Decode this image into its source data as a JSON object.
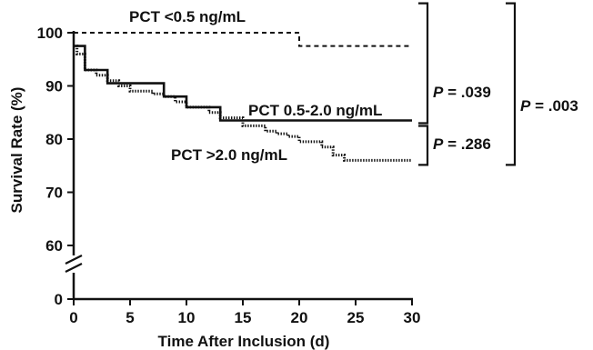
{
  "chart_data": {
    "type": "line",
    "xlabel": "Time After Inclusion (d)",
    "ylabel": "Survival Rate (%)",
    "xlim": [
      0,
      30
    ],
    "ylim_displayed": [
      60,
      100
    ],
    "y_axis_break": true,
    "x_ticks": [
      0,
      5,
      10,
      15,
      20,
      25,
      30
    ],
    "y_ticks": [
      60,
      70,
      80,
      90,
      100
    ],
    "y_zero_tick": 0,
    "grid": false,
    "series": [
      {
        "name": "PCT <0.5 ng/mL",
        "style": "dashed",
        "color": "#111111",
        "x": [
          0,
          20,
          20,
          30
        ],
        "y": [
          100,
          100,
          97.5,
          97.5
        ]
      },
      {
        "name": "PCT 0.5-2.0 ng/mL",
        "style": "solid",
        "color": "#111111",
        "x": [
          0,
          1,
          1,
          3,
          3,
          8,
          8,
          10,
          10,
          13,
          13,
          30
        ],
        "y": [
          97.5,
          97.5,
          93,
          93,
          90.5,
          90.5,
          88,
          88,
          86,
          86,
          83.5,
          83.5
        ]
      },
      {
        "name": "PCT >2.0 ng/mL",
        "style": "dotted",
        "color": "#111111",
        "x": [
          0,
          0.3,
          0.3,
          1,
          1,
          2,
          2,
          3,
          3,
          4,
          4,
          5,
          5,
          7,
          7,
          8,
          8,
          9,
          9,
          10,
          10,
          12,
          12,
          13,
          13,
          15,
          15,
          17,
          17,
          18,
          18,
          19,
          19,
          20,
          20,
          22,
          22,
          23,
          23,
          24,
          24,
          30
        ],
        "y": [
          97.5,
          97.5,
          96,
          96,
          93,
          93,
          92,
          92,
          91,
          91,
          90,
          90,
          89,
          89,
          88.5,
          88.5,
          88,
          88,
          87,
          87,
          86,
          86,
          85,
          85,
          84,
          84,
          82.5,
          82.5,
          81.5,
          81.5,
          81,
          81,
          80.5,
          80.5,
          79.5,
          79.5,
          78.5,
          78.5,
          77,
          77,
          76,
          76
        ]
      }
    ],
    "annotations": {
      "series_labels": [
        "PCT <0.5 ng/mL",
        "PCT 0.5-2.0 ng/mL",
        "PCT >2.0 ng/mL"
      ],
      "comparisons": [
        {
          "letter": "P",
          "value": " = .039"
        },
        {
          "letter": "P",
          "value": " = .286"
        },
        {
          "letter": "P",
          "value": " = .003"
        }
      ]
    }
  }
}
